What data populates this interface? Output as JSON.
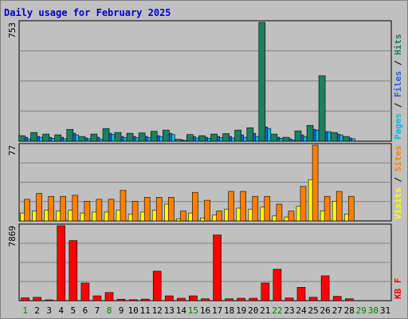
{
  "chart_data": [
    {
      "type": "bar",
      "title": "Daily usage for February 2025",
      "panel": "top",
      "ymax_label": "753",
      "ylim": [
        0,
        753
      ],
      "categories": [
        "1",
        "2",
        "3",
        "4",
        "5",
        "6",
        "7",
        "8",
        "9",
        "10",
        "11",
        "12",
        "13",
        "14",
        "15",
        "16",
        "17",
        "18",
        "19",
        "20",
        "21",
        "22",
        "23",
        "24",
        "25",
        "26",
        "27",
        "28",
        "29",
        "30",
        "31"
      ],
      "series": [
        {
          "name": "Pages",
          "color": "#00c0e0",
          "values": [
            15,
            25,
            18,
            15,
            40,
            15,
            12,
            42,
            22,
            22,
            22,
            30,
            42,
            5,
            20,
            18,
            22,
            20,
            25,
            30,
            80,
            18,
            8,
            30,
            70,
            60,
            40,
            15,
            0,
            0,
            0
          ]
        },
        {
          "name": "Files",
          "color": "#1e5fe6",
          "values": [
            25,
            30,
            25,
            25,
            50,
            20,
            25,
            50,
            30,
            30,
            30,
            35,
            50,
            8,
            30,
            25,
            30,
            30,
            40,
            50,
            90,
            25,
            15,
            40,
            75,
            60,
            45,
            20,
            0,
            0,
            0
          ]
        },
        {
          "name": "Hits",
          "color": "#1a8060",
          "values": [
            35,
            55,
            45,
            40,
            75,
            30,
            45,
            80,
            55,
            50,
            52,
            62,
            70,
            12,
            42,
            35,
            45,
            48,
            70,
            85,
            753,
            45,
            25,
            65,
            100,
            415,
            55,
            30,
            0,
            0,
            0
          ]
        }
      ],
      "legend": "right-vertical"
    },
    {
      "type": "bar",
      "panel": "middle",
      "ymax_label": "77",
      "ylim": [
        0,
        77
      ],
      "categories": [
        "1",
        "2",
        "3",
        "4",
        "5",
        "6",
        "7",
        "8",
        "9",
        "10",
        "11",
        "12",
        "13",
        "14",
        "15",
        "16",
        "17",
        "18",
        "19",
        "20",
        "21",
        "22",
        "23",
        "24",
        "25",
        "26",
        "27",
        "28",
        "29",
        "30",
        "31"
      ],
      "series": [
        {
          "name": "Visits",
          "color": "#ffff00",
          "values": [
            8,
            10,
            11,
            10,
            11,
            8,
            9,
            9,
            11,
            7,
            9,
            11,
            17,
            2,
            8,
            3,
            6,
            12,
            13,
            12,
            14,
            5,
            4,
            15,
            42,
            10,
            20,
            7,
            0,
            0,
            0
          ]
        },
        {
          "name": "Sites",
          "color": "#ff8000",
          "values": [
            22,
            28,
            25,
            25,
            26,
            20,
            22,
            22,
            31,
            20,
            24,
            24,
            24,
            10,
            29,
            21,
            10,
            30,
            30,
            25,
            25,
            17,
            10,
            35,
            77,
            25,
            30,
            25,
            0,
            0,
            0
          ]
        }
      ],
      "legend": "right-vertical"
    },
    {
      "type": "bar",
      "panel": "bottom",
      "ymax_label": "7869",
      "ylim": [
        0,
        7869
      ],
      "categories": [
        "1",
        "2",
        "3",
        "4",
        "5",
        "6",
        "7",
        "8",
        "9",
        "10",
        "11",
        "12",
        "13",
        "14",
        "15",
        "16",
        "17",
        "18",
        "19",
        "20",
        "21",
        "22",
        "23",
        "24",
        "25",
        "26",
        "27",
        "28",
        "29",
        "30",
        "31"
      ],
      "weekend_days": [
        1,
        8,
        15,
        22,
        29,
        30
      ],
      "series": [
        {
          "name": "KB F",
          "color": "#ff0000",
          "values": [
            300,
            350,
            60,
            7869,
            6300,
            1850,
            500,
            850,
            150,
            100,
            160,
            3100,
            500,
            250,
            500,
            200,
            6900,
            200,
            250,
            250,
            1850,
            3300,
            280,
            1400,
            350,
            2600,
            450,
            200,
            0,
            0,
            0
          ]
        }
      ],
      "legend": "right-vertical"
    }
  ]
}
